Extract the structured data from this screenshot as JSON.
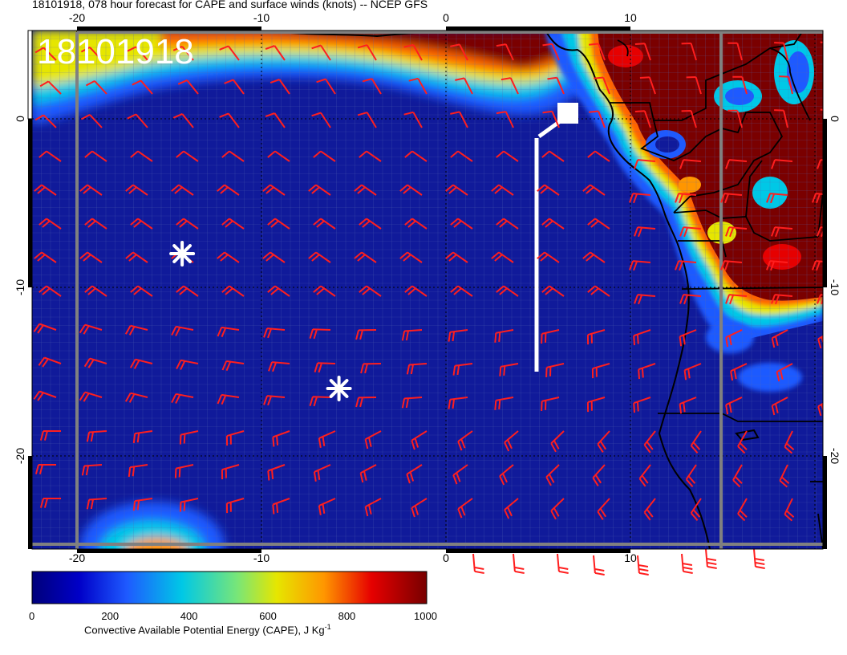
{
  "title": "18101918, 078 hour forecast for CAPE and surface winds (knots) -- NCEP GFS",
  "stamp": "18101918",
  "colorbar": {
    "title_text": "Convective Available Potential Energy (CAPE), J Kg",
    "title_sup": "-1",
    "ticks": [
      "0",
      "200",
      "400",
      "600",
      "800",
      "1000"
    ],
    "colors": [
      "#00007a",
      "#0000c8",
      "#1e5aff",
      "#00c8e6",
      "#78e678",
      "#e6e600",
      "#ff9600",
      "#e60000",
      "#780000"
    ]
  },
  "axes": {
    "lon_ticks": [
      "-20",
      "-10",
      "0",
      "10"
    ],
    "lat_ticks": [
      "0",
      "-10",
      "-20"
    ]
  },
  "colors": {
    "barb": "#ff1e1e",
    "ocean": "#101a9a",
    "high_cape": "#7a0000",
    "coast": "#000000",
    "marker": "#ffffff"
  },
  "markers": [
    {
      "name": "asterisk-1",
      "lon": -14.3,
      "lat": -8
    },
    {
      "name": "asterisk-2",
      "lon": -5.8,
      "lat": -16
    }
  ]
}
